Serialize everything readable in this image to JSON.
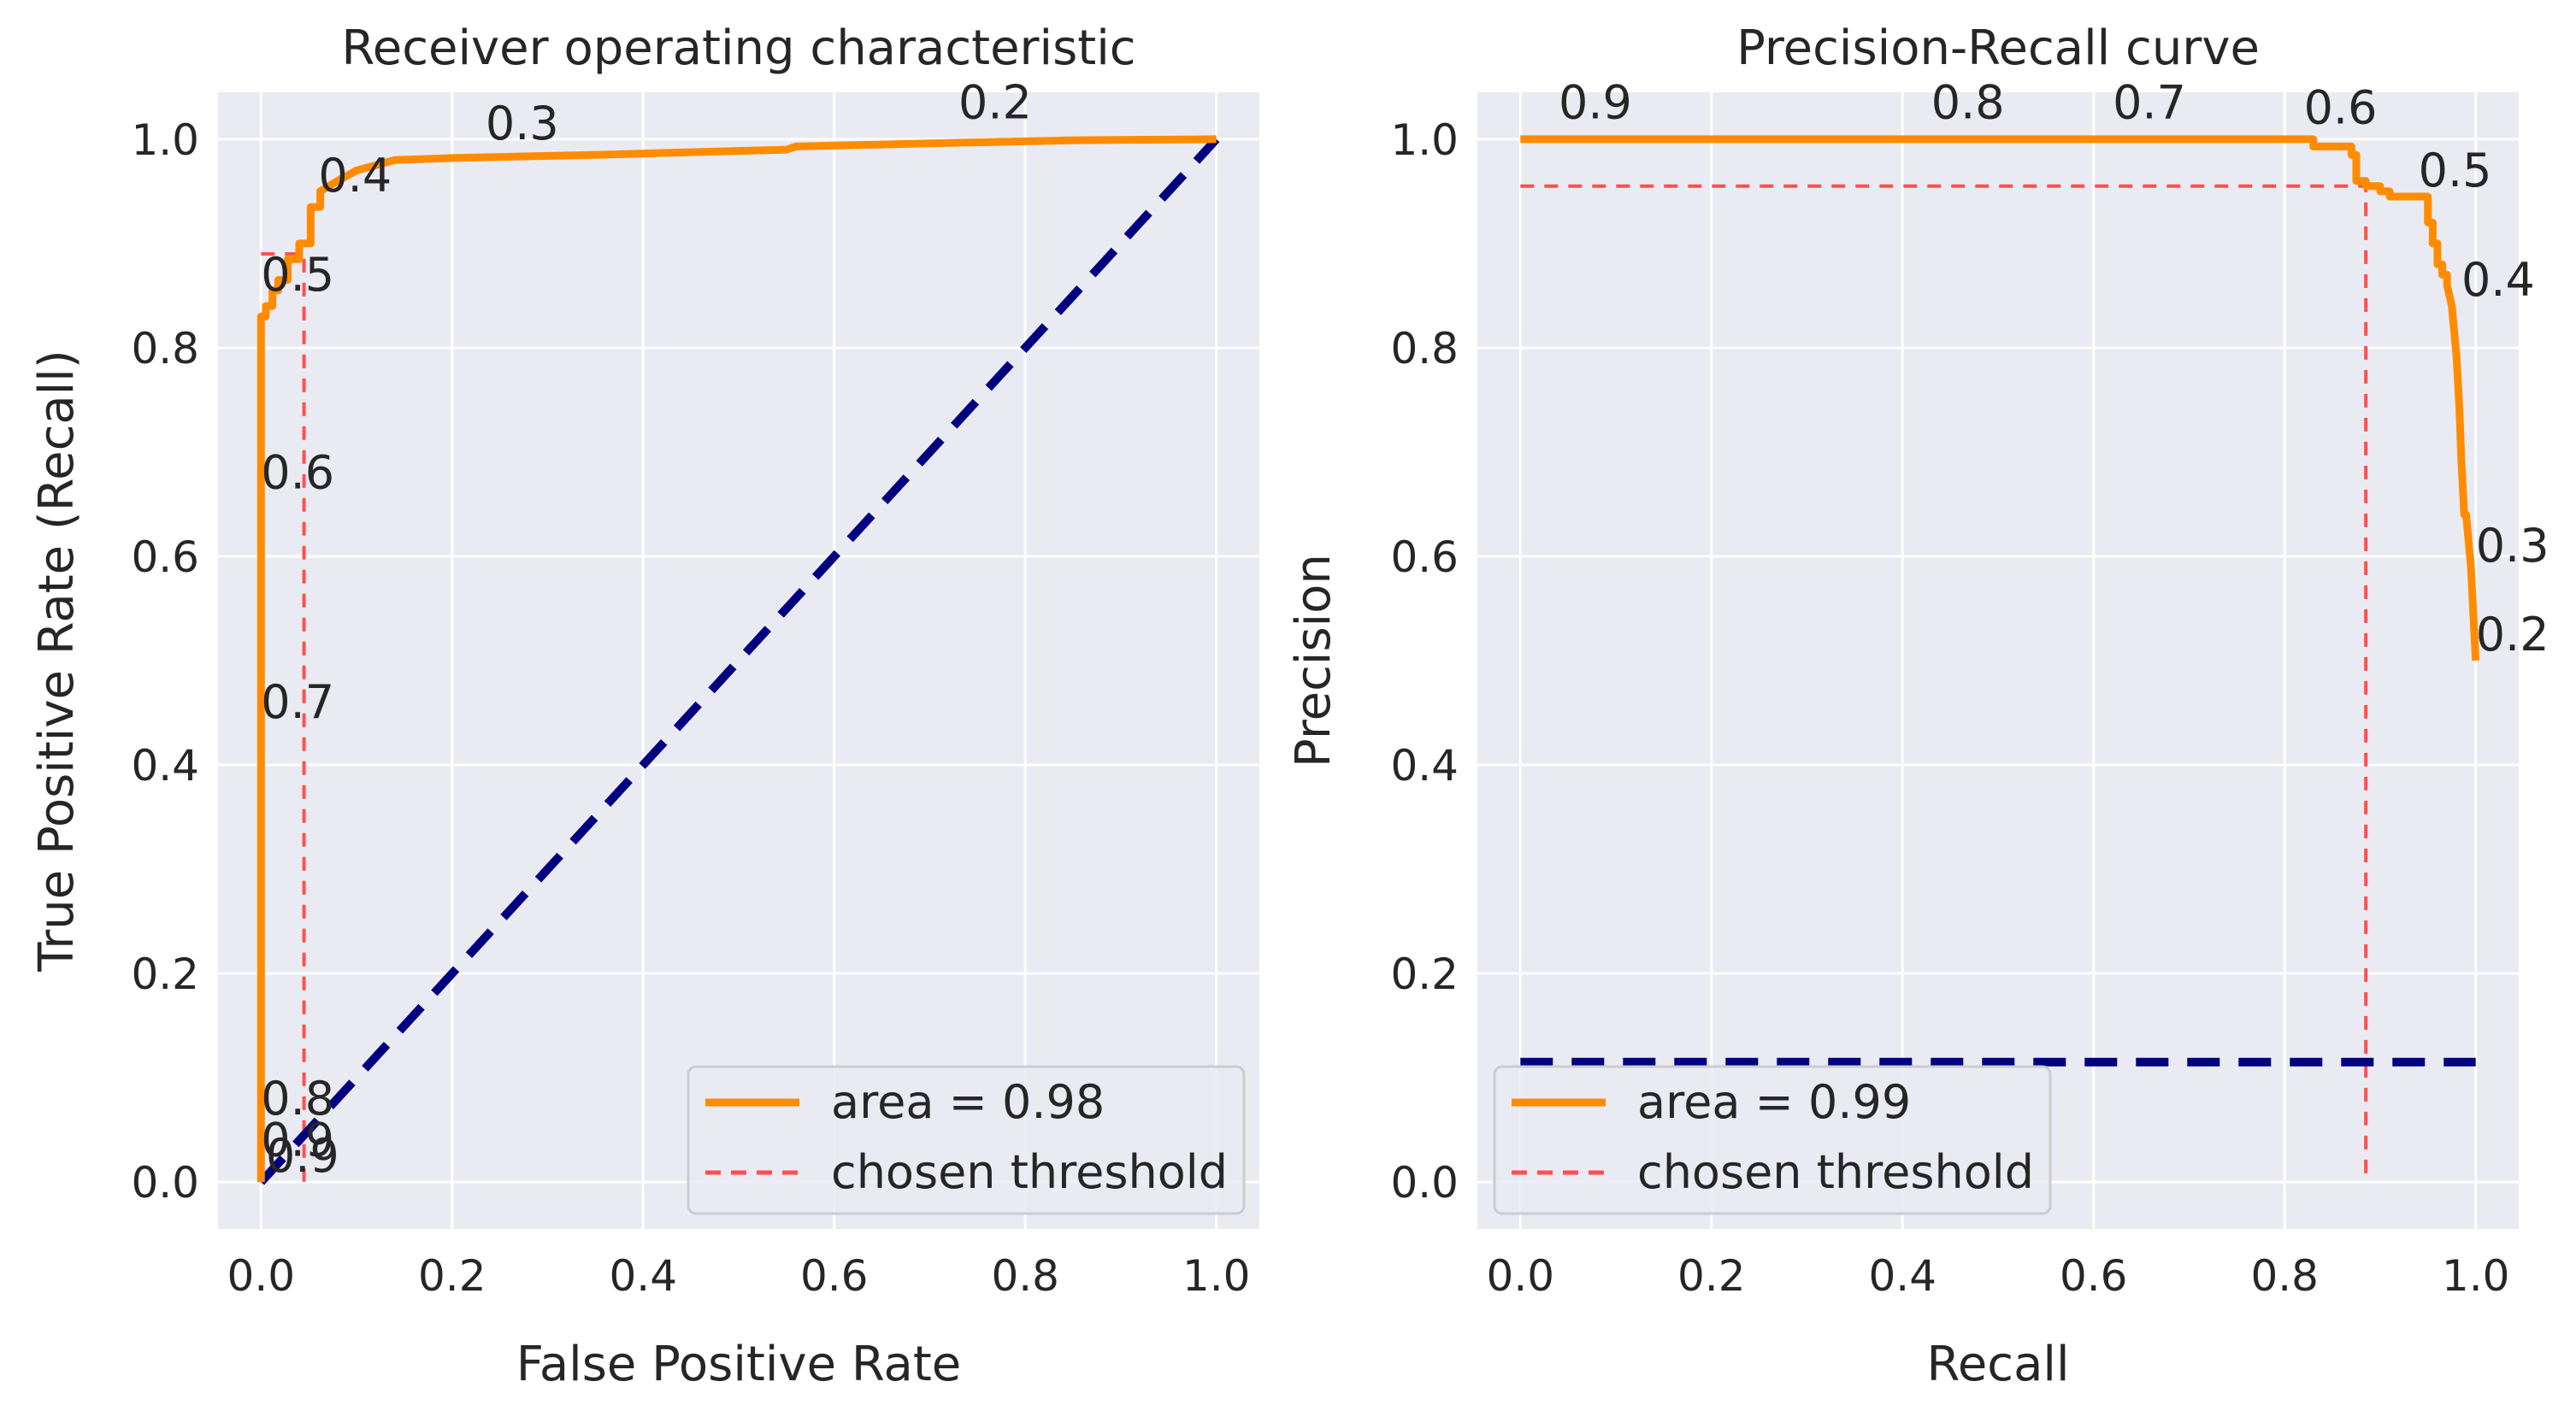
{
  "chart_data": [
    {
      "type": "line",
      "title": "Receiver operating characteristic",
      "xlabel": "False Positive Rate",
      "ylabel": "True Positive Rate (Recall)",
      "xlim": [
        -0.045,
        1.045
      ],
      "ylim": [
        -0.045,
        1.045
      ],
      "grid": true,
      "legend_position": "lower-right",
      "xticks": [
        "0.0",
        "0.2",
        "0.4",
        "0.6",
        "0.8",
        "1.0"
      ],
      "yticks": [
        "0.0",
        "0.2",
        "0.4",
        "0.6",
        "0.8",
        "1.0"
      ],
      "colors": {
        "curve": "#ff8c00",
        "diagonal": "#000080",
        "threshold": "#ff4f4f",
        "panel": "#eaeaf2",
        "grid": "#ffffff"
      },
      "series": [
        {
          "name": "area = 0.98",
          "style": "solid",
          "x": [
            0,
            0,
            0.005,
            0.005,
            0.012,
            0.012,
            0.018,
            0.018,
            0.028,
            0.028,
            0.04,
            0.04,
            0.052,
            0.052,
            0.062,
            0.062,
            0.08,
            0.1,
            0.14,
            0.2,
            0.35,
            0.55,
            0.56,
            0.7,
            0.85,
            1.0
          ],
          "y": [
            0,
            0.83,
            0.83,
            0.84,
            0.84,
            0.855,
            0.855,
            0.865,
            0.865,
            0.885,
            0.885,
            0.9,
            0.9,
            0.935,
            0.935,
            0.95,
            0.96,
            0.97,
            0.98,
            0.982,
            0.985,
            0.99,
            0.993,
            0.996,
            0.999,
            1.0
          ]
        },
        {
          "name": "",
          "style": "dashed",
          "x": [
            0,
            1
          ],
          "y": [
            0,
            1
          ]
        },
        {
          "name": "chosen threshold",
          "style": "dashed",
          "x": [
            0.0,
            0.045,
            0.045
          ],
          "y": [
            0.89,
            0.89,
            0.0
          ]
        }
      ],
      "threshold_labels": [
        {
          "text": "0.3",
          "x": 0.235,
          "y": 1.0
        },
        {
          "text": "0.2",
          "x": 0.73,
          "y": 1.02
        },
        {
          "text": "0.4",
          "x": 0.06,
          "y": 0.95
        },
        {
          "text": "0.5",
          "x": 0.0,
          "y": 0.855
        },
        {
          "text": "0.6",
          "x": 0.0,
          "y": 0.665
        },
        {
          "text": "0.7",
          "x": 0.0,
          "y": 0.445
        },
        {
          "text": "0.8",
          "x": 0.0,
          "y": 0.065
        },
        {
          "text": "0.9",
          "x": 0.0,
          "y": 0.025
        },
        {
          "text": "0.9",
          "x": 0.005,
          "y": 0.01
        }
      ]
    },
    {
      "type": "line",
      "title": "Precision-Recall curve",
      "xlabel": "Recall",
      "ylabel": "Precision",
      "xlim": [
        -0.045,
        1.045
      ],
      "ylim": [
        -0.045,
        1.045
      ],
      "grid": true,
      "legend_position": "lower-left",
      "xticks": [
        "0.0",
        "0.2",
        "0.4",
        "0.6",
        "0.8",
        "1.0"
      ],
      "yticks": [
        "0.0",
        "0.2",
        "0.4",
        "0.6",
        "0.8",
        "1.0"
      ],
      "colors": {
        "curve": "#ff8c00",
        "baseline": "#000080",
        "threshold": "#ff4f4f",
        "panel": "#eaeaf2",
        "grid": "#ffffff"
      },
      "series": [
        {
          "name": "area = 0.99",
          "style": "solid",
          "x": [
            0,
            0.5,
            0.82,
            0.83,
            0.83,
            0.87,
            0.87,
            0.875,
            0.875,
            0.885,
            0.885,
            0.9,
            0.9,
            0.91,
            0.91,
            0.95,
            0.95,
            0.955,
            0.955,
            0.96,
            0.96,
            0.965,
            0.965,
            0.97,
            0.97,
            0.975,
            0.98,
            0.983,
            0.985,
            0.988,
            0.99,
            0.995,
            1.0
          ],
          "y": [
            1.0,
            1.0,
            1.0,
            1.0,
            0.993,
            0.993,
            0.985,
            0.985,
            0.96,
            0.96,
            0.955,
            0.955,
            0.95,
            0.95,
            0.945,
            0.945,
            0.92,
            0.92,
            0.9,
            0.9,
            0.88,
            0.88,
            0.87,
            0.87,
            0.86,
            0.84,
            0.79,
            0.74,
            0.69,
            0.64,
            0.64,
            0.59,
            0.5
          ]
        },
        {
          "name": "",
          "style": "dashed",
          "x": [
            0,
            1
          ],
          "y": [
            0.115,
            0.115
          ]
        },
        {
          "name": "chosen threshold",
          "style": "dashed",
          "x": [
            0.0,
            0.885,
            0.885
          ],
          "y": [
            0.955,
            0.955,
            0.0
          ]
        }
      ],
      "threshold_labels": [
        {
          "text": "0.9",
          "x": 0.04,
          "y": 1.02
        },
        {
          "text": "0.8",
          "x": 0.43,
          "y": 1.02
        },
        {
          "text": "0.7",
          "x": 0.62,
          "y": 1.02
        },
        {
          "text": "0.6",
          "x": 0.82,
          "y": 1.015
        },
        {
          "text": "0.5",
          "x": 0.94,
          "y": 0.955
        },
        {
          "text": "0.4",
          "x": 0.985,
          "y": 0.85
        },
        {
          "text": "0.3",
          "x": 1.0,
          "y": 0.595
        },
        {
          "text": "0.2",
          "x": 1.0,
          "y": 0.51
        }
      ]
    }
  ]
}
